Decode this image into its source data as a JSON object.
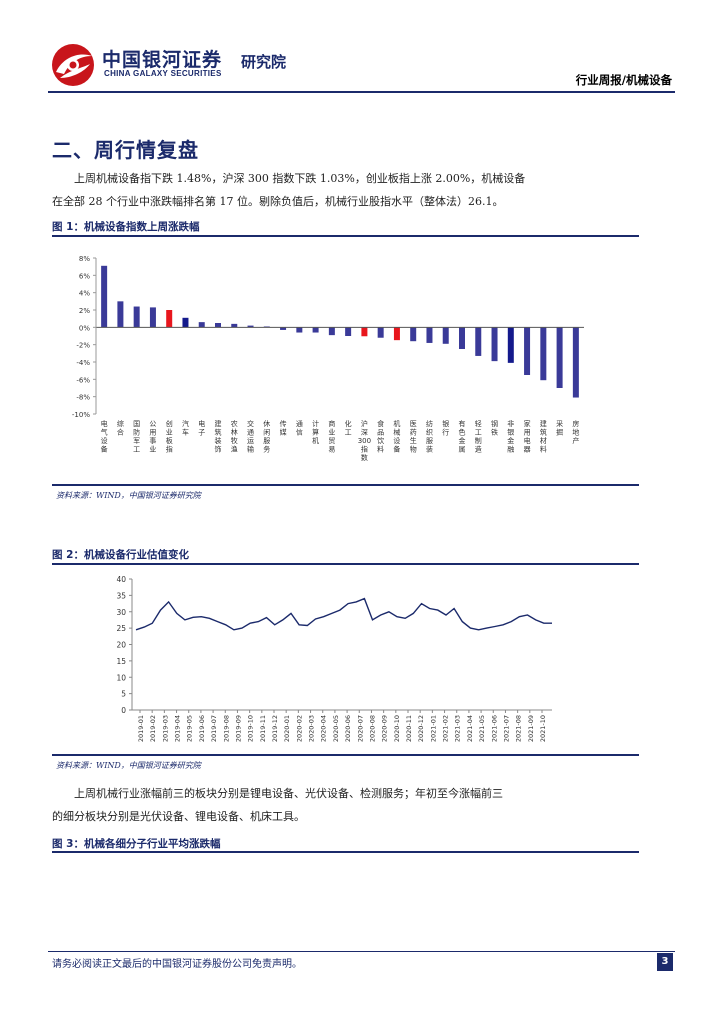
{
  "header": {
    "company_cn": "中国银河证券",
    "company_en": "CHINA GALAXY SECURITIES",
    "institute": "研究院",
    "report_tag": "行业周报/机械设备"
  },
  "section": {
    "title": "二、周行情复盘",
    "para1_line1": "上周机械设备指下跌 1.48%，沪深 300 指数下跌 1.03%，创业板指上涨 2.00%，机械设备",
    "para1_line2": "在全部 28 个行业中涨跌幅排名第 17 位。剔除负值后，机械行业股指水平（整体法）26.1。",
    "para2_line1": "上周机械行业涨幅前三的板块分别是锂电设备、光伏设备、检测服务；年初至今涨幅前三",
    "para2_line2": "的细分板块分别是光伏设备、锂电设备、机床工具。"
  },
  "figures": {
    "fig1_title": "图 1：机械设备指数上周涨跌幅",
    "fig1_source": "资料来源：WIND，中国银河证券研究院",
    "fig2_title": "图 2：机械设备行业估值变化",
    "fig2_source": "资料来源：WIND，中国银河证券研究院",
    "fig3_title": "图 3：机械各细分子行业平均涨跌幅"
  },
  "footer": {
    "disclaimer": "请务必阅读正文最后的中国银河证券股份公司免责声明。",
    "page": "3"
  },
  "colors": {
    "navy": "#1b2a6b",
    "bar": "#3a3a98",
    "highlight_red": "#e8161d",
    "highlight_blue": "#141a8c"
  },
  "chart_data": [
    {
      "type": "bar",
      "categories": [
        "电气设备",
        "综合",
        "国防军工",
        "公用事业",
        "创业板指",
        "汽车",
        "电子",
        "建筑装饰",
        "农林牧渔",
        "交通运输",
        "休闲服务",
        "传媒",
        "通信",
        "计算机",
        "商业贸易",
        "化工",
        "沪深300指数",
        "食品饮料",
        "机械设备",
        "医药生物",
        "纺织服装",
        "银行",
        "有色金属",
        "轻工制造",
        "钢铁",
        "非银金融",
        "家用电器",
        "建筑材料",
        "采掘",
        "房地产"
      ],
      "values": [
        7.1,
        3.0,
        2.4,
        2.3,
        2.0,
        1.1,
        0.6,
        0.5,
        0.4,
        0.2,
        0.1,
        -0.3,
        -0.6,
        -0.6,
        -0.9,
        -1.0,
        -1.03,
        -1.2,
        -1.48,
        -1.6,
        -1.8,
        -1.9,
        -2.5,
        -3.3,
        -3.9,
        -4.1,
        -5.5,
        -6.1,
        -7.0,
        -8.1
      ],
      "highlight": {
        "创业板指": "red",
        "沪深300指数": "red",
        "机械设备": "red",
        "汽车": "blue",
        "非银金融": "blue"
      },
      "y_tick_labels": [
        "8%",
        "6%",
        "4%",
        "2%",
        "0%",
        "-2%",
        "-4%",
        "-6%",
        "-8%",
        "-10%"
      ],
      "ylim": [
        -10,
        8
      ]
    },
    {
      "type": "line",
      "x_tick_labels": [
        "2019-01",
        "2019-02",
        "2019-03",
        "2019-04",
        "2019-05",
        "2019-06",
        "2019-07",
        "2019-08",
        "2019-09",
        "2019-10",
        "2019-11",
        "2019-12",
        "2020-01",
        "2020-02",
        "2020-03",
        "2020-04",
        "2020-05",
        "2020-06",
        "2020-07",
        "2020-08",
        "2020-09",
        "2020-10",
        "2020-11",
        "2020-12",
        "2021-01",
        "2021-02",
        "2021-03",
        "2021-04",
        "2021-05",
        "2021-06",
        "2021-07",
        "2021-08",
        "2021-09",
        "2021-10"
      ],
      "y_tick_labels": [
        "40",
        "35",
        "30",
        "25",
        "20",
        "15",
        "10",
        "5",
        "0"
      ],
      "ylim": [
        0,
        40
      ],
      "series": [
        {
          "values": [
            24.5,
            25.3,
            26.5,
            30.5,
            33.0,
            29.5,
            27.5,
            28.3,
            28.5,
            28.0,
            27.0,
            26.0,
            24.5,
            25.0,
            26.5,
            27.0,
            28.2,
            26.0,
            27.5,
            29.5,
            26.0,
            25.8,
            27.8,
            28.5,
            29.5,
            30.5,
            32.5,
            33.0,
            34.0,
            27.5,
            29.0,
            30.0,
            28.5,
            28.0,
            29.5,
            32.5,
            31.0,
            30.5,
            29.0,
            31.0,
            27.0,
            25.0,
            24.5,
            25.0,
            25.5,
            26.0,
            27.0,
            28.5,
            29.0,
            27.5,
            26.5,
            26.5
          ]
        }
      ]
    }
  ]
}
